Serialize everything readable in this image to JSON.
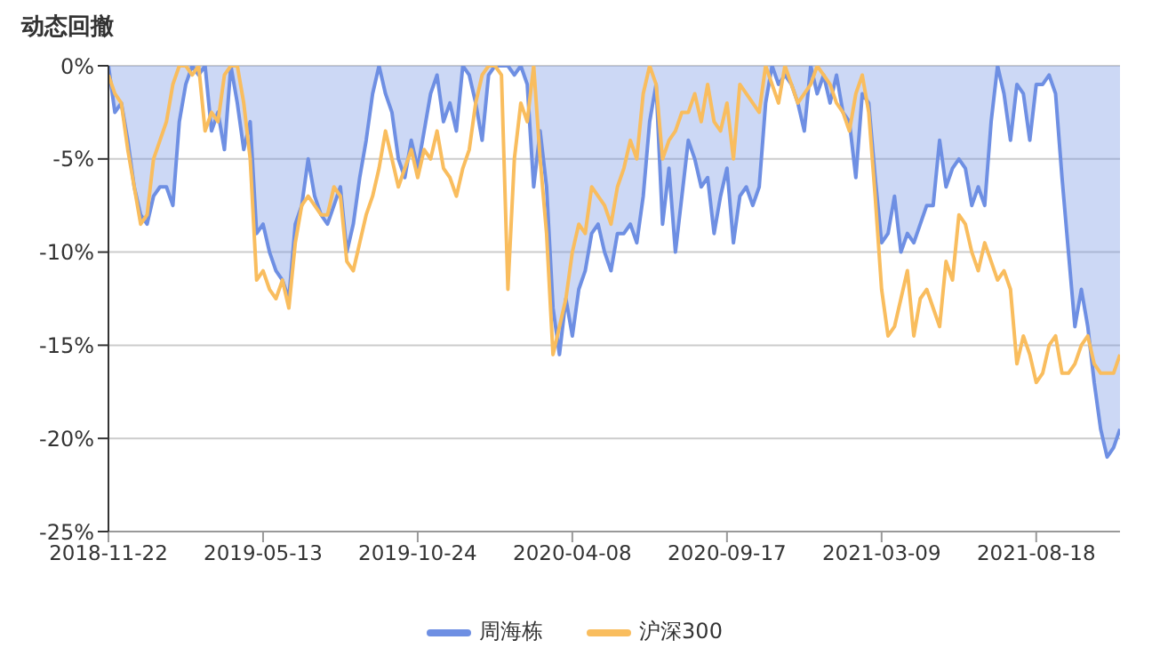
{
  "chart_data": {
    "type": "line",
    "title": "动态回撤",
    "categories": [
      "2018-11-22",
      null,
      null,
      null,
      null,
      null,
      null,
      null,
      null,
      null,
      null,
      null,
      null,
      null,
      null,
      null,
      null,
      null,
      null,
      null,
      null,
      null,
      null,
      null,
      "2019-05-13",
      null,
      null,
      null,
      null,
      null,
      null,
      null,
      null,
      null,
      null,
      null,
      null,
      null,
      null,
      null,
      null,
      null,
      null,
      null,
      null,
      null,
      null,
      null,
      "2019-10-24",
      null,
      null,
      null,
      null,
      null,
      null,
      null,
      null,
      null,
      null,
      null,
      null,
      null,
      null,
      null,
      null,
      null,
      null,
      null,
      null,
      null,
      null,
      null,
      "2020-04-08",
      null,
      null,
      null,
      null,
      null,
      null,
      null,
      null,
      null,
      null,
      null,
      null,
      null,
      null,
      null,
      null,
      null,
      null,
      null,
      null,
      null,
      null,
      null,
      "2020-09-17",
      null,
      null,
      null,
      null,
      null,
      null,
      null,
      null,
      null,
      null,
      null,
      null,
      null,
      null,
      null,
      null,
      null,
      null,
      null,
      null,
      null,
      null,
      null,
      "2021-03-09",
      null,
      null,
      null,
      null,
      null,
      null,
      null,
      null,
      null,
      null,
      null,
      null,
      null,
      null,
      null,
      null,
      null,
      null,
      null,
      null,
      null,
      null,
      null,
      "2021-08-18",
      null,
      null,
      null,
      null,
      null,
      null,
      null,
      null,
      null,
      null,
      null,
      null,
      null
    ],
    "series": [
      {
        "name": "周海栋",
        "type": "area",
        "color": "#6e8fe3",
        "values": [
          0,
          -2.5,
          -2,
          -4,
          -6.5,
          -8,
          -8.5,
          -7,
          -6.5,
          -6.5,
          -7.5,
          -3,
          -1,
          0,
          -0.5,
          0,
          -3.5,
          -2.5,
          -4.5,
          0,
          -2,
          -4.5,
          -3,
          -9,
          -8.5,
          -10,
          -11,
          -11.5,
          -12.5,
          -8.5,
          -7.5,
          -5,
          -7,
          -8,
          -8.5,
          -7.5,
          -6.5,
          -10,
          -8.5,
          -6,
          -4,
          -1.5,
          0,
          -1.5,
          -2.5,
          -5,
          -6,
          -4,
          -5.5,
          -3.5,
          -1.5,
          -0.5,
          -3,
          -2,
          -3.5,
          0,
          -0.5,
          -2,
          -4,
          -0.5,
          0,
          0,
          0,
          -0.5,
          0,
          -1,
          -6.5,
          -3.5,
          -6.5,
          -13,
          -15.5,
          -12.5,
          -14.5,
          -12,
          -11,
          -9,
          -8.5,
          -10,
          -11,
          -9,
          -9,
          -8.5,
          -9.5,
          -7,
          -3,
          -1,
          -8.5,
          -5.5,
          -10,
          -7,
          -4,
          -5,
          -6.5,
          -6,
          -9,
          -7,
          -5.5,
          -9.5,
          -7,
          -6.5,
          -7.5,
          -6.5,
          -2,
          0,
          -1,
          -0.5,
          -1,
          -2,
          -3.5,
          0,
          -1.5,
          -0.5,
          -2,
          -0.5,
          -2.5,
          -3,
          -6,
          -1.5,
          -2,
          -6,
          -9.5,
          -9,
          -7,
          -10,
          -9,
          -9.5,
          -8.5,
          -7.5,
          -7.5,
          -4,
          -6.5,
          -5.5,
          -5,
          -5.5,
          -7.5,
          -6.5,
          -7.5,
          -3,
          0,
          -1.5,
          -4,
          -1,
          -1.5,
          -4,
          -1,
          -1,
          -0.5,
          -1.5,
          -6,
          -10,
          -14,
          -12,
          -14,
          -17,
          -19.5,
          -21,
          -20.5,
          -19.5
        ]
      },
      {
        "name": "沪深300",
        "color": "#f9bd5e",
        "values": [
          -0.5,
          -1.5,
          -2,
          -4.5,
          -6.5,
          -8.5,
          -8,
          -5,
          -4,
          -3,
          -1,
          0,
          0,
          -0.5,
          0,
          -3.5,
          -2.5,
          -3,
          -0.5,
          0,
          0,
          -2,
          -5,
          -11.5,
          -11,
          -12,
          -12.5,
          -11.5,
          -13,
          -9.5,
          -7.5,
          -7,
          -7.5,
          -8,
          -8,
          -6.5,
          -7,
          -10.5,
          -11,
          -9.5,
          -8,
          -7,
          -5.5,
          -3.5,
          -5,
          -6.5,
          -5.5,
          -4.5,
          -6,
          -4.5,
          -5,
          -3.5,
          -5.5,
          -6,
          -7,
          -5.5,
          -4.5,
          -2,
          -0.5,
          0,
          0,
          -0.5,
          -12,
          -5,
          -2,
          -3,
          0,
          -5,
          -9,
          -15.5,
          -14,
          -12.5,
          -10,
          -8.5,
          -9,
          -6.5,
          -7,
          -7.5,
          -8.5,
          -6.5,
          -5.5,
          -4,
          -5,
          -1.5,
          0,
          -1,
          -5,
          -4,
          -3.5,
          -2.5,
          -2.5,
          -1.5,
          -3,
          -1,
          -3,
          -3.5,
          -2,
          -5,
          -1,
          -1.5,
          -2,
          -2.5,
          0,
          -1,
          -2,
          0,
          -1,
          -2,
          -1.5,
          -1,
          0,
          -0.5,
          -1,
          -2,
          -2.5,
          -3.5,
          -1.5,
          -0.5,
          -2.5,
          -7,
          -12,
          -14.5,
          -14,
          -12.5,
          -11,
          -14.5,
          -12.5,
          -12,
          -13,
          -14,
          -10.5,
          -11.5,
          -8,
          -8.5,
          -10,
          -11,
          -9.5,
          -10.5,
          -11.5,
          -11,
          -12,
          -16,
          -14.5,
          -15.5,
          -17,
          -16.5,
          -15,
          -14.5,
          -16.5,
          -16.5,
          -16,
          -15,
          -14.5,
          -16,
          -16.5,
          -16.5,
          -16.5,
          -15.5
        ]
      }
    ],
    "ylim": [
      -25,
      0
    ],
    "yticks": [
      {
        "value": -25,
        "label": "-25%"
      },
      {
        "value": -20,
        "label": "-20%"
      },
      {
        "value": -15,
        "label": "-15%"
      },
      {
        "value": -10,
        "label": "-10%"
      },
      {
        "value": -5,
        "label": "-5%"
      },
      {
        "value": 0,
        "label": "0%"
      }
    ],
    "grid": "y",
    "legend": "bottom",
    "marker": "none",
    "line_style": "solid"
  }
}
